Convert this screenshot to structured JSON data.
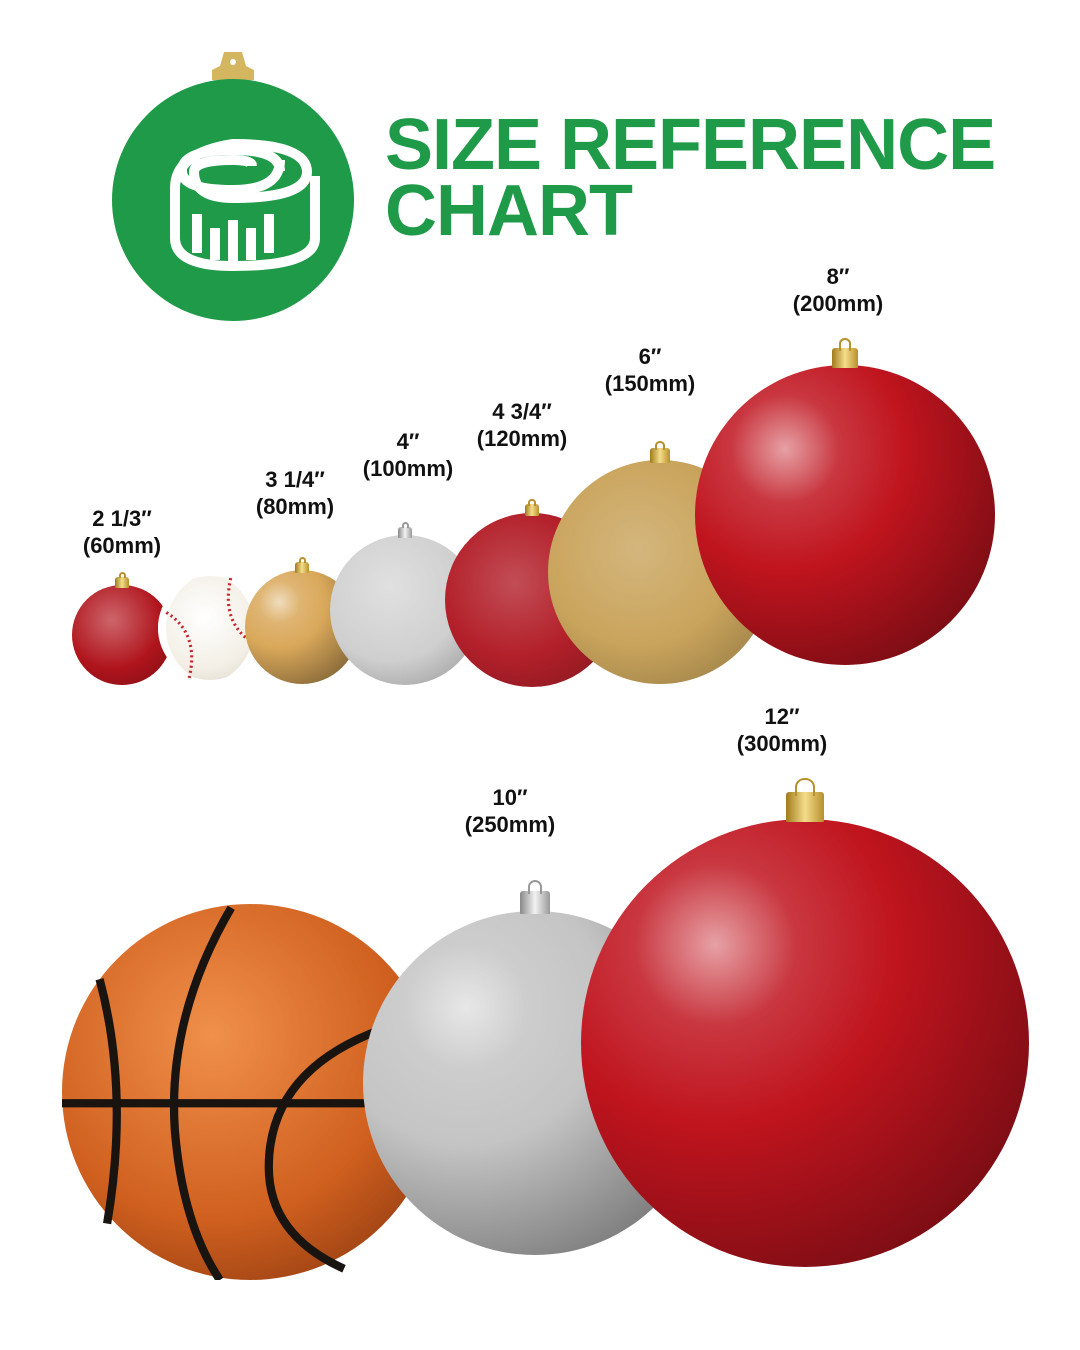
{
  "header": {
    "title_line1": "SIZE REFERENCE",
    "title_line2": "CHART",
    "logo_icon": "tape-measure-icon",
    "brand_color": "#1e9a48"
  },
  "row1": [
    {
      "size": "2 1/3″",
      "mm": "(60mm)",
      "color": "#b0141c",
      "finish": "glitter"
    },
    {
      "size": "",
      "mm": "",
      "color": "#f4f1ea",
      "finish": "baseball"
    },
    {
      "size": "3 1/4″",
      "mm": "(80mm)",
      "color": "#d9a85a",
      "finish": "shiny"
    },
    {
      "size": "4″",
      "mm": "(100mm)",
      "color": "#cfcfcf",
      "finish": "glitter"
    },
    {
      "size": "4 3/4″",
      "mm": "(120mm)",
      "color": "#b3202a",
      "finish": "matte"
    },
    {
      "size": "6″",
      "mm": "(150mm)",
      "color": "#c9a45c",
      "finish": "matte"
    },
    {
      "size": "8″",
      "mm": "(200mm)",
      "color": "#c0141e",
      "finish": "shiny"
    }
  ],
  "row2": [
    {
      "size": "",
      "mm": "",
      "color": "#d0601f",
      "finish": "basketball"
    },
    {
      "size": "10″",
      "mm": "(250mm)",
      "color": "#c4c4c4",
      "finish": "shiny"
    },
    {
      "size": "12″",
      "mm": "(300mm)",
      "color": "#c0141e",
      "finish": "shiny"
    }
  ]
}
